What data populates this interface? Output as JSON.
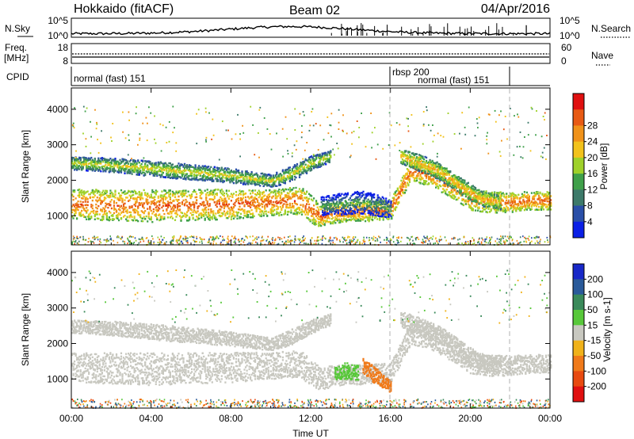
{
  "header": {
    "station": "Hokkaido (fitACF)",
    "beam": "Beam 02",
    "date": "04/Apr/2016"
  },
  "colors": {
    "axis": "#000000",
    "dashed_marker": "#b0b0b0"
  },
  "noise_panel": {
    "left_label": "N.Sky",
    "left_ticks": [
      "10^5",
      "10^0"
    ],
    "right_label": "N.Search",
    "right_ticks": [
      "10^5",
      "10^0"
    ]
  },
  "freq_panel": {
    "left_label_line1": "Freq.",
    "left_label_line2": "[MHz]",
    "left_ticks": [
      "18",
      "8"
    ],
    "right_label": "Nave",
    "right_ticks": [
      "60",
      "0"
    ]
  },
  "cpid_panel": {
    "label": "CPID",
    "segments": [
      {
        "name": "normal (fast) 151",
        "start_hour": 0,
        "end_hour": 16
      },
      {
        "name": "rbsp 200",
        "start_hour": 16,
        "end_hour": 21.8
      },
      {
        "name": "normal (fast) 151",
        "start_hour": 16,
        "end_hour": 21.8
      }
    ],
    "markers_hours": [
      16,
      21.8
    ]
  },
  "chart_data": [
    {
      "type": "heatmap",
      "name": "power",
      "ylabel": "Slant Range [km]",
      "ylim": [
        180,
        4600
      ],
      "yticks": [
        "1000",
        "2000",
        "3000",
        "4000"
      ],
      "xlim_hours": [
        0,
        24
      ],
      "colorbar_label": "Power [dB]",
      "colorbar_ticks": [
        "4",
        "8",
        "12",
        "16",
        "20",
        "24",
        "28"
      ],
      "colorbar_colors": [
        "#0a1fe6",
        "#2a4fa8",
        "#3d7a6a",
        "#3fa04a",
        "#9fd12a",
        "#f2c21c",
        "#f0921a",
        "#e85a14",
        "#e01010"
      ],
      "bands": [
        {
          "name": "main-band",
          "x": [
            0,
            4,
            8,
            10,
            11.5,
            12,
            12.5,
            13,
            14,
            15,
            16,
            17,
            18,
            19,
            20,
            21,
            22,
            23,
            24
          ],
          "y": [
            1350,
            1300,
            1350,
            1400,
            1450,
            1200,
            1000,
            1100,
            1150,
            1150,
            1200,
            2300,
            2200,
            1900,
            1500,
            1400,
            1400,
            1450,
            1450
          ],
          "w": [
            420,
            450,
            420,
            380,
            380,
            400,
            300,
            300,
            280,
            280,
            280,
            300,
            340,
            360,
            320,
            300,
            280,
            260,
            260
          ],
          "val": 27
        },
        {
          "name": "upper-band",
          "x": [
            0,
            2,
            5,
            8,
            10,
            11,
            12,
            13
          ],
          "y": [
            2500,
            2450,
            2300,
            2150,
            2000,
            2200,
            2500,
            2700
          ],
          "w": [
            180,
            200,
            220,
            200,
            180,
            220,
            200,
            160
          ],
          "val": 19
        },
        {
          "name": "dayside-arc",
          "x": [
            16.5,
            17.5,
            18.5,
            19.5,
            20.5,
            21.5
          ],
          "y": [
            2700,
            2500,
            2250,
            1850,
            1500,
            1400
          ],
          "w": [
            220,
            240,
            240,
            240,
            220,
            200
          ],
          "val": 22
        },
        {
          "name": "afternoon-echo",
          "x": [
            12.5,
            13.5,
            14.5,
            15.5,
            16
          ],
          "y": [
            1300,
            1350,
            1400,
            1300,
            1200
          ],
          "w": [
            260,
            300,
            320,
            300,
            240
          ],
          "val": 13
        }
      ]
    },
    {
      "type": "heatmap",
      "name": "velocity",
      "ylabel": "Slant Range [km]",
      "xlabel": "Time UT",
      "ylim": [
        180,
        4600
      ],
      "yticks": [
        "1000",
        "2000",
        "3000",
        "4000"
      ],
      "xlim_hours": [
        0,
        24
      ],
      "xticks": [
        "00:00",
        "04:00",
        "08:00",
        "12:00",
        "16:00",
        "20:00",
        "00:00"
      ],
      "colorbar_label": "Velocity [m s-1]",
      "colorbar_ticks": [
        "200",
        "100",
        "50",
        "15",
        "-15",
        "-50",
        "-100",
        "-200"
      ],
      "colorbar_colors": [
        "#1828c8",
        "#2a5a9a",
        "#3a8a5a",
        "#58c83a",
        "#c8c8c0",
        "#f0b21a",
        "#f07a1a",
        "#e84a10",
        "#e01010"
      ],
      "bands": [
        {
          "name": "ground-scatter",
          "x": [
            0,
            4,
            8,
            10,
            11.5,
            12,
            12.5,
            13,
            14,
            15,
            16,
            17,
            18,
            19,
            20,
            21,
            22,
            23,
            24
          ],
          "y": [
            1350,
            1300,
            1350,
            1400,
            1450,
            1200,
            1000,
            1100,
            1150,
            1150,
            1200,
            2300,
            2200,
            1900,
            1500,
            1400,
            1400,
            1450,
            1450
          ],
          "w": [
            420,
            450,
            420,
            380,
            380,
            400,
            300,
            300,
            280,
            280,
            280,
            300,
            340,
            360,
            320,
            300,
            280,
            260,
            260
          ],
          "val": 0
        },
        {
          "name": "upper-gs",
          "x": [
            0,
            2,
            5,
            8,
            10,
            11,
            12,
            13
          ],
          "y": [
            2500,
            2450,
            2300,
            2150,
            2000,
            2200,
            2500,
            2700
          ],
          "w": [
            180,
            200,
            220,
            200,
            180,
            220,
            200,
            160
          ],
          "val": 0
        },
        {
          "name": "dayside-gs",
          "x": [
            16.5,
            17.5,
            18.5,
            19.5,
            20.5,
            21.5
          ],
          "y": [
            2700,
            2500,
            2250,
            1850,
            1500,
            1400
          ],
          "w": [
            220,
            240,
            240,
            240,
            220,
            200
          ],
          "val": 0
        },
        {
          "name": "negative-patch",
          "x": [
            14.6,
            15.0,
            15.5,
            16.0
          ],
          "y": [
            1400,
            1200,
            1000,
            800
          ],
          "w": [
            200,
            240,
            200,
            160
          ],
          "val": -70
        },
        {
          "name": "positive-patch",
          "x": [
            13.2,
            13.8,
            14.4
          ],
          "y": [
            1200,
            1250,
            1200
          ],
          "w": [
            200,
            240,
            200
          ],
          "val": 40
        }
      ]
    }
  ]
}
